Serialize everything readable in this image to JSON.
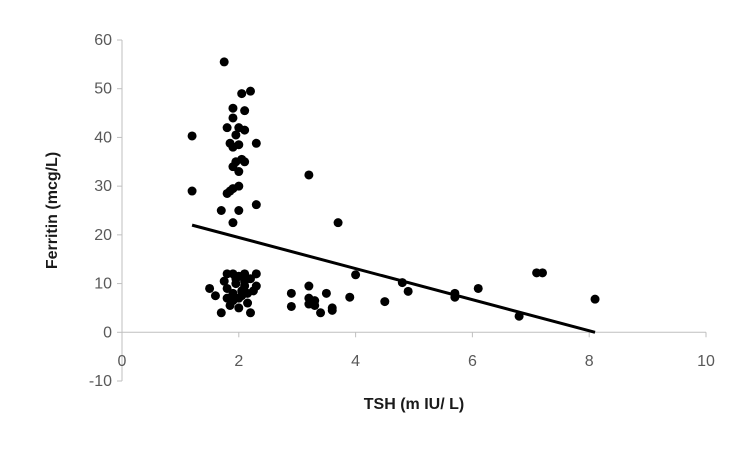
{
  "chart_data": {
    "type": "scatter",
    "title": "",
    "xlabel": "TSH (m IU/ L)",
    "ylabel": "Ferritin (mcg/L)",
    "xlim": [
      0,
      10
    ],
    "ylim": [
      -10,
      60
    ],
    "x_ticks": [
      "0",
      "2",
      "4",
      "6",
      "8",
      "10"
    ],
    "y_ticks": [
      "-10",
      "0",
      "10",
      "20",
      "30",
      "40",
      "50",
      "60"
    ],
    "grid": false,
    "legend": "none",
    "colors": {
      "points": "#000000",
      "trendline": "#000000",
      "axis": "#bfbfbf",
      "tick_text": "#595959"
    },
    "trendline": {
      "type": "linear",
      "x": [
        1.2,
        8.1
      ],
      "y": [
        22,
        0
      ]
    },
    "points": [
      [
        1.75,
        55.5
      ],
      [
        1.2,
        40.3
      ],
      [
        1.2,
        29
      ],
      [
        1.7,
        25
      ],
      [
        2.05,
        49
      ],
      [
        2.2,
        49.5
      ],
      [
        1.9,
        46
      ],
      [
        2.1,
        45.5
      ],
      [
        1.9,
        44
      ],
      [
        1.8,
        42
      ],
      [
        2.0,
        42
      ],
      [
        2.1,
        41.5
      ],
      [
        1.95,
        40.5
      ],
      [
        1.85,
        38.8
      ],
      [
        2.0,
        38.5
      ],
      [
        1.9,
        38
      ],
      [
        2.3,
        38.8
      ],
      [
        2.05,
        35.5
      ],
      [
        1.95,
        35
      ],
      [
        2.1,
        35
      ],
      [
        1.9,
        34
      ],
      [
        2.0,
        33
      ],
      [
        2.0,
        30
      ],
      [
        1.9,
        29.5
      ],
      [
        1.85,
        29
      ],
      [
        1.8,
        28.5
      ],
      [
        2.3,
        26.2
      ],
      [
        2.0,
        25
      ],
      [
        1.9,
        22.5
      ],
      [
        3.2,
        32.3
      ],
      [
        3.7,
        22.5
      ],
      [
        1.5,
        9
      ],
      [
        1.6,
        7.5
      ],
      [
        1.7,
        4
      ],
      [
        1.8,
        12
      ],
      [
        1.9,
        12
      ],
      [
        2.0,
        11.5
      ],
      [
        2.1,
        12
      ],
      [
        2.2,
        11
      ],
      [
        2.3,
        12
      ],
      [
        2.2,
        4
      ],
      [
        1.8,
        9
      ],
      [
        1.9,
        8
      ],
      [
        1.95,
        10
      ],
      [
        2.0,
        7
      ],
      [
        2.05,
        8.5
      ],
      [
        2.1,
        9.5
      ],
      [
        2.15,
        6
      ],
      [
        1.85,
        5.5
      ],
      [
        2.0,
        5
      ],
      [
        2.1,
        10.5
      ],
      [
        1.75,
        10.5
      ],
      [
        1.9,
        6.5
      ],
      [
        2.25,
        8.5
      ],
      [
        2.3,
        9.5
      ],
      [
        1.95,
        11
      ],
      [
        2.05,
        7.5
      ],
      [
        1.8,
        7
      ],
      [
        2.15,
        8
      ],
      [
        2.9,
        8
      ],
      [
        2.9,
        5.3
      ],
      [
        3.2,
        9.5
      ],
      [
        3.2,
        7
      ],
      [
        3.3,
        6.5
      ],
      [
        3.3,
        5.5
      ],
      [
        3.4,
        4
      ],
      [
        3.5,
        8
      ],
      [
        3.6,
        4.5
      ],
      [
        3.6,
        5
      ],
      [
        3.2,
        5.8
      ],
      [
        3.9,
        7.2
      ],
      [
        4.0,
        11.8
      ],
      [
        4.5,
        6.3
      ],
      [
        4.8,
        10.2
      ],
      [
        4.9,
        8.4
      ],
      [
        5.7,
        8
      ],
      [
        5.7,
        7.2
      ],
      [
        6.1,
        9
      ],
      [
        6.8,
        3.3
      ],
      [
        7.1,
        12.2
      ],
      [
        7.2,
        12.2
      ],
      [
        8.1,
        6.8
      ]
    ]
  }
}
